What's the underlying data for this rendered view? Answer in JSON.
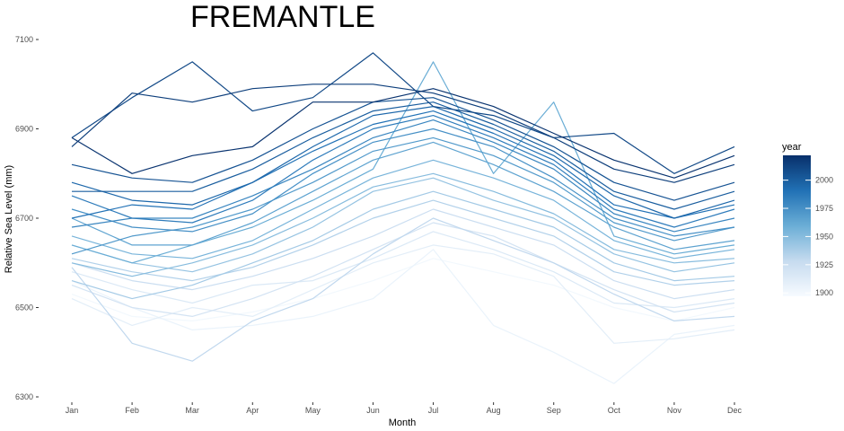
{
  "chart_data": {
    "type": "line",
    "title": "FREMANTLE",
    "xlabel": "Month",
    "ylabel": "Relative Sea Level (mm)",
    "categories": [
      "Jan",
      "Feb",
      "Mar",
      "Apr",
      "May",
      "Jun",
      "Jul",
      "Aug",
      "Sep",
      "Oct",
      "Nov",
      "Dec"
    ],
    "ylim": [
      6300,
      7100
    ],
    "yticks": [
      6300,
      6500,
      6700,
      6900,
      7100
    ],
    "grid": false,
    "legend": {
      "title": "year",
      "placement": "right",
      "range": [
        1897,
        2022
      ],
      "ticks": [
        1900,
        1925,
        1950,
        1975,
        2000
      ],
      "colors": [
        "#f7fbff",
        "#c6dbef",
        "#6baed6",
        "#2171b5",
        "#08306b"
      ]
    },
    "series": [
      {
        "year": 1900,
        "values": [
          6530,
          6480,
          6470,
          6490,
          6520,
          6560,
          6610,
          6580,
          6550,
          6500,
          6470,
          6500
        ]
      },
      {
        "year": 1905,
        "values": [
          6560,
          6500,
          6450,
          6460,
          6480,
          6520,
          6630,
          6460,
          6400,
          6330,
          6440,
          6460
        ]
      },
      {
        "year": 1910,
        "values": [
          6520,
          6460,
          6500,
          6480,
          6540,
          6600,
          6640,
          6620,
          6570,
          6420,
          6430,
          6450
        ]
      },
      {
        "year": 1915,
        "values": [
          6580,
          6540,
          6510,
          6550,
          6560,
          6610,
          6670,
          6630,
          6580,
          6510,
          6500,
          6520
        ]
      },
      {
        "year": 1920,
        "values": [
          6550,
          6500,
          6480,
          6520,
          6570,
          6630,
          6690,
          6660,
          6600,
          6540,
          6490,
          6510
        ]
      },
      {
        "year": 1925,
        "values": [
          6600,
          6560,
          6540,
          6570,
          6610,
          6660,
          6720,
          6680,
          6640,
          6560,
          6520,
          6540
        ]
      },
      {
        "year": 1930,
        "values": [
          6590,
          6420,
          6380,
          6470,
          6520,
          6620,
          6700,
          6650,
          6600,
          6530,
          6470,
          6480
        ]
      },
      {
        "year": 1935,
        "values": [
          6610,
          6580,
          6560,
          6590,
          6640,
          6700,
          6740,
          6700,
          6660,
          6580,
          6550,
          6560
        ]
      },
      {
        "year": 1940,
        "values": [
          6560,
          6520,
          6550,
          6600,
          6650,
          6720,
          6760,
          6720,
          6680,
          6600,
          6560,
          6570
        ]
      },
      {
        "year": 1945,
        "values": [
          6640,
          6600,
          6580,
          6620,
          6680,
          6760,
          6790,
          6740,
          6700,
          6620,
          6580,
          6600
        ]
      },
      {
        "year": 1950,
        "values": [
          6600,
          6570,
          6600,
          6640,
          6700,
          6770,
          6800,
          6760,
          6710,
          6630,
          6600,
          6610
        ]
      },
      {
        "year": 1955,
        "values": [
          6660,
          6620,
          6610,
          6650,
          6720,
          6790,
          6830,
          6790,
          6740,
          6650,
          6610,
          6630
        ]
      },
      {
        "year": 1960,
        "values": [
          6640,
          6600,
          6640,
          6680,
          6740,
          6810,
          7050,
          6800,
          6960,
          6660,
          6620,
          6640
        ]
      },
      {
        "year": 1965,
        "values": [
          6700,
          6640,
          6640,
          6690,
          6760,
          6830,
          6870,
          6820,
          6760,
          6680,
          6630,
          6650
        ]
      },
      {
        "year": 1970,
        "values": [
          6620,
          6660,
          6680,
          6720,
          6780,
          6850,
          6880,
          6840,
          6780,
          6690,
          6650,
          6680
        ]
      },
      {
        "year": 1975,
        "values": [
          6720,
          6680,
          6670,
          6710,
          6800,
          6870,
          6900,
          6860,
          6790,
          6700,
          6660,
          6680
        ]
      },
      {
        "year": 1980,
        "values": [
          6680,
          6700,
          6700,
          6750,
          6810,
          6880,
          6920,
          6870,
          6810,
          6710,
          6670,
          6700
        ]
      },
      {
        "year": 1985,
        "values": [
          6750,
          6700,
          6690,
          6740,
          6830,
          6900,
          6930,
          6880,
          6820,
          6720,
          6680,
          6720
        ]
      },
      {
        "year": 1990,
        "values": [
          6700,
          6730,
          6720,
          6780,
          6850,
          6910,
          6940,
          6890,
          6830,
          6730,
          6700,
          6730
        ]
      },
      {
        "year": 1995,
        "values": [
          6780,
          6740,
          6730,
          6780,
          6860,
          6930,
          6950,
          6900,
          6840,
          6750,
          6700,
          6740
        ]
      },
      {
        "year": 2000,
        "values": [
          6760,
          6760,
          6760,
          6810,
          6880,
          6940,
          6960,
          6910,
          6850,
          6760,
          6720,
          6760
        ]
      },
      {
        "year": 2005,
        "values": [
          6820,
          6790,
          6780,
          6830,
          6900,
          6960,
          6970,
          6920,
          6860,
          6780,
          6740,
          6780
        ]
      },
      {
        "year": 2010,
        "values": [
          6880,
          6970,
          7050,
          6940,
          6970,
          7070,
          6950,
          6930,
          6880,
          6890,
          6800,
          6860
        ]
      },
      {
        "year": 2015,
        "values": [
          6860,
          6980,
          6960,
          6990,
          7000,
          7000,
          6980,
          6940,
          6880,
          6810,
          6780,
          6820
        ]
      },
      {
        "year": 2020,
        "values": [
          6880,
          6800,
          6840,
          6860,
          6960,
          6960,
          6990,
          6950,
          6890,
          6830,
          6790,
          6840
        ]
      }
    ]
  }
}
